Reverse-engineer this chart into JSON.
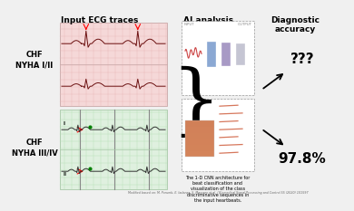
{
  "title_ecg": "Input ECG traces",
  "title_ai": "AI analysis",
  "title_diag": "Diagnostic\naccuracy",
  "label_chf1": "CHF\nNYHA I/II",
  "label_chf2": "CHF\nNYHA III/IV",
  "text_cnn": "The 1-D CNN architecture for\nbeat classification and\nvisualization of the class\ndiscriminative sequences in\nthe input heartbeats.",
  "text_qqq": "???",
  "text_pct": "97.8%",
  "caption": "Modified based on: M. Porumb, E. Iadanza, S. Massaro et al. / Biomedical Signal Processing and Control 55 (2020) 101597",
  "bg_color": "#f0f0f0",
  "ecg1_bg": "#f5d8d8",
  "ecg2_bg": "#dff0df",
  "ecg1_grid": "#e8b8b8",
  "ecg2_grid": "#b8e0b8"
}
